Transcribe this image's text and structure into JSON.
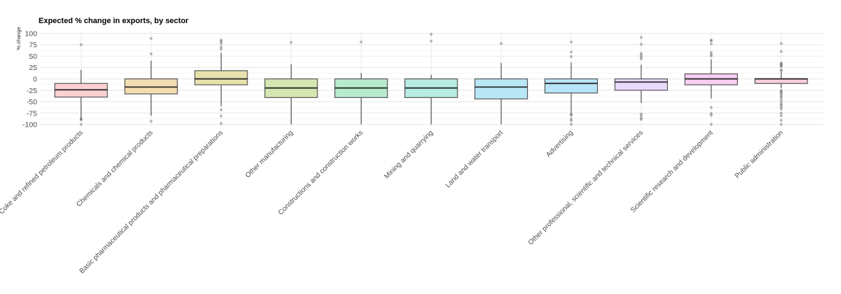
{
  "chart_data": {
    "type": "boxplot",
    "title": "Expected % change in exports, by sector",
    "xlabel": "",
    "ylabel": "% change",
    "ylim": [
      -105,
      105
    ],
    "yticks": [
      100,
      75,
      50,
      25,
      0,
      -25,
      -50,
      -75,
      -100
    ],
    "grid": true,
    "legend": "none",
    "categories": [
      "Coke and refined petroleum products",
      "Chemicals and chemical products",
      "Basic pharmaceutical products and pharmaceutical preparations",
      "Other manufacturing",
      "Constructions and construction works",
      "Mining and quarrying",
      "Land and water transport",
      "Advertising",
      "Other professional, scientific and technical services",
      "Scientific research and development",
      "Public administration"
    ],
    "colors": [
      "#fdc9c9",
      "#f2d7a2",
      "#e3dca0",
      "#cfe3a3",
      "#abe8c5",
      "#a9e9df",
      "#ace3f4",
      "#ace0f8",
      "#e3d3fb",
      "#f8c4f2",
      "#fdc6dc"
    ],
    "boxes": [
      {
        "q1": -40,
        "median": -24,
        "q3": -10,
        "whisker_low": -89,
        "whisker_high": 20,
        "outliers": [
          75,
          -88,
          -90,
          -100
        ]
      },
      {
        "q1": -33,
        "median": -18,
        "q3": 0,
        "whisker_low": -81,
        "whisker_high": 40,
        "outliers": [
          89,
          55,
          -93
        ]
      },
      {
        "q1": -13,
        "median": 0,
        "q3": 18,
        "whisker_low": -60,
        "whisker_high": 57,
        "outliers": [
          85,
          82,
          78,
          70,
          65,
          -68,
          -82,
          -98
        ]
      },
      {
        "q1": -41,
        "median": -20,
        "q3": 0,
        "whisker_low": -100,
        "whisker_high": 32,
        "outliers": [
          80
        ]
      },
      {
        "q1": -41,
        "median": -20,
        "q3": 0,
        "whisker_low": -100,
        "whisker_high": 13,
        "outliers": [
          81
        ]
      },
      {
        "q1": -41,
        "median": -20,
        "q3": 0,
        "whisker_low": -100,
        "whisker_high": 9,
        "outliers": [
          98,
          83
        ]
      },
      {
        "q1": -44,
        "median": -18,
        "q3": 0,
        "whisker_low": -100,
        "whisker_high": 35,
        "outliers": [
          78
        ]
      },
      {
        "q1": -31,
        "median": -10,
        "q3": 0,
        "whisker_low": -77,
        "whisker_high": 36,
        "outliers": [
          81,
          59,
          49,
          -78,
          -80,
          -88,
          -92,
          -100
        ]
      },
      {
        "q1": -25,
        "median": -7,
        "q3": 0,
        "whisker_low": -53,
        "whisker_high": 31,
        "outliers": [
          91,
          76,
          56,
          52,
          48,
          44,
          -77,
          -81,
          -86,
          -89
        ]
      },
      {
        "q1": -13,
        "median": 0,
        "q3": 11,
        "whisker_low": -43,
        "whisker_high": 43,
        "outliers": [
          85,
          84,
          77,
          58,
          54,
          50,
          -63,
          -76,
          -80,
          -100
        ]
      },
      {
        "q1": -10,
        "median": 0,
        "q3": 0,
        "whisker_low": -20,
        "whisker_high": 15,
        "outliers": [
          78,
          60,
          35,
          33,
          31,
          29,
          27,
          20,
          18,
          -25,
          -28,
          -30,
          -33,
          -37,
          -40,
          -45,
          -50,
          -55,
          -58,
          -62,
          -66,
          -75,
          -81,
          -91,
          -100
        ]
      }
    ]
  }
}
